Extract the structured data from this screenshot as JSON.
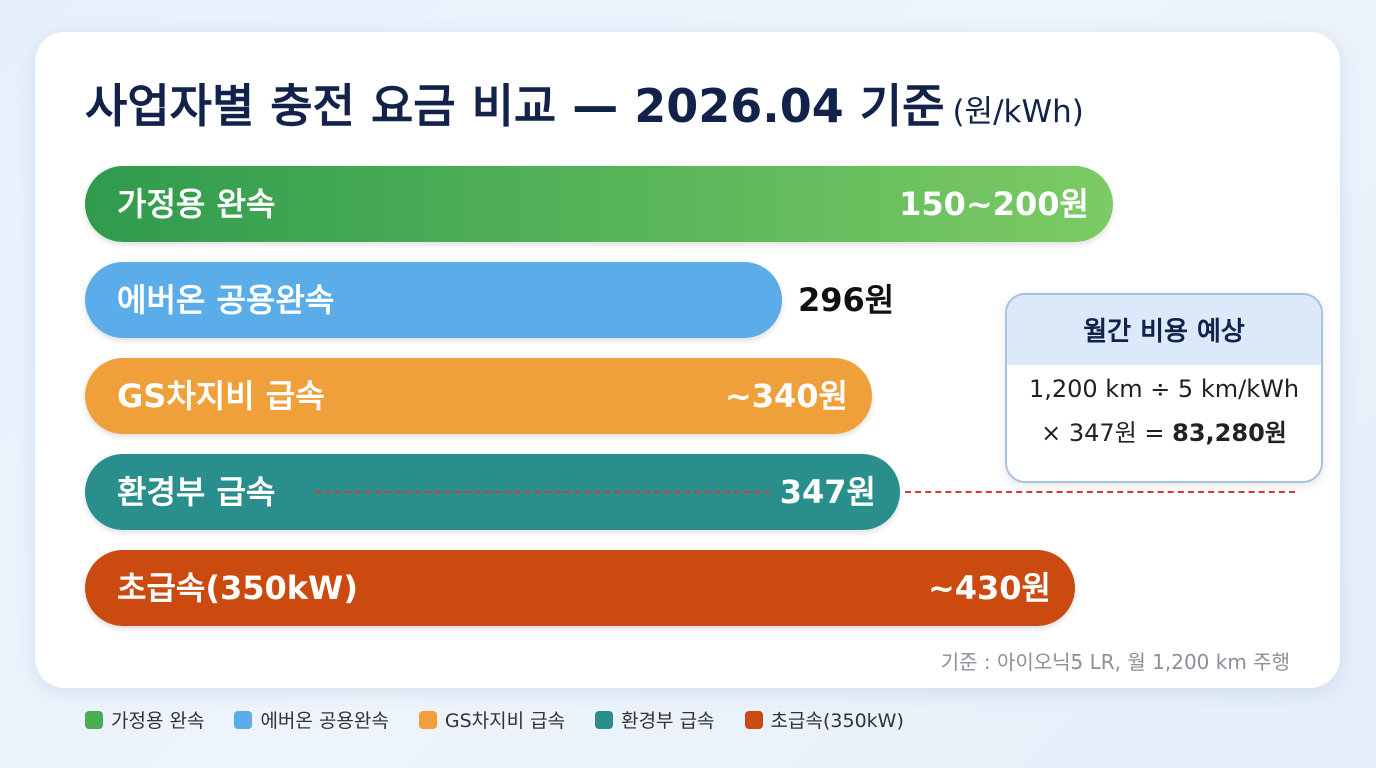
{
  "header": {
    "title": "사업자별 충전 요금 비교 — 2026.04 기준",
    "unit": "(원/kWh)"
  },
  "bars": [
    {
      "label": "가정용 완속",
      "value": "150~200원"
    },
    {
      "label": "에버온 공용완속",
      "value": "296원"
    },
    {
      "label": "GS차지비 급속",
      "value": "~340원"
    },
    {
      "label": "환경부 급속",
      "value": "347원"
    },
    {
      "label": "초급속(350kW)",
      "value": "~430원"
    }
  ],
  "callout": {
    "title": "월간 비용 예상",
    "line1": "1,200 km ÷ 5 km/kWh",
    "line2": "× 347원 =",
    "result": "83,280원"
  },
  "footnote": "기준 : 아이오닉5 LR, 월 1,200 km 주행",
  "legend": [
    "가정용 완속",
    "에버온 공용완속",
    "GS차지비 급속",
    "환경부 급속",
    "초급속(350kW)"
  ]
}
